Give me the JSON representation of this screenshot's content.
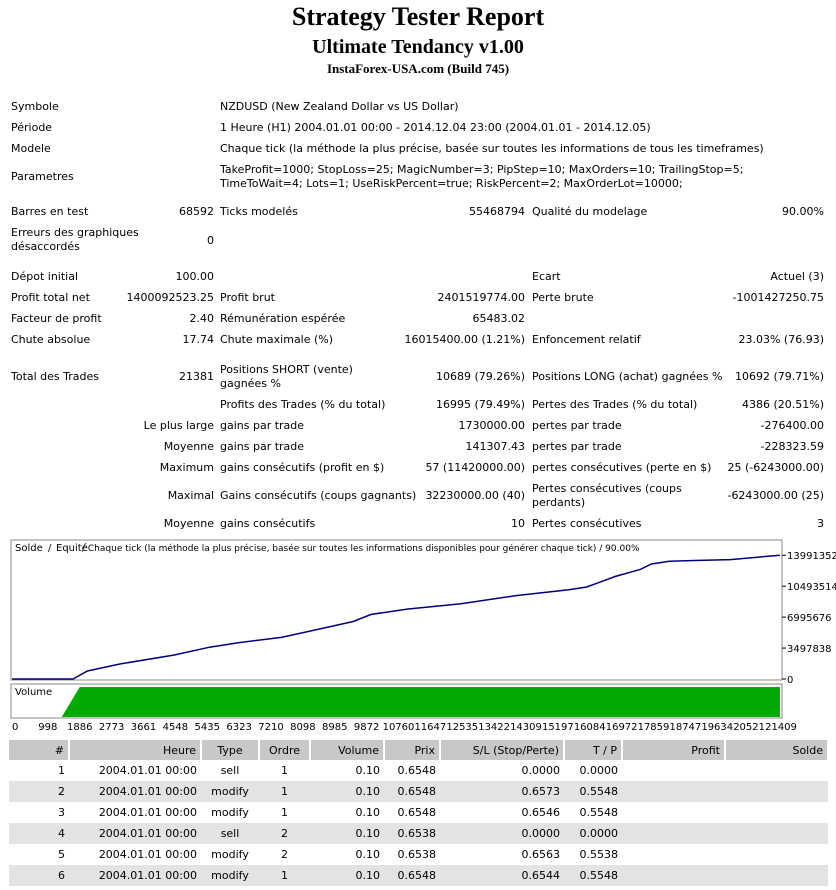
{
  "header": {
    "title": "Strategy Tester Report",
    "subtitle": "Ultimate Tendancy v1.00",
    "broker": "InstaForex-USA.com (Build 745)"
  },
  "info": {
    "symbol_label": "Symbole",
    "symbol_value": "NZDUSD (New Zealand Dollar vs US Dollar)",
    "period_label": "Période",
    "period_value": "1 Heure (H1) 2004.01.01 00:00 - 2014.12.04 23:00 (2004.01.01 - 2014.12.05)",
    "model_label": "Modele",
    "model_value": "Chaque tick (la méthode la plus précise, basée sur toutes les informations de tous les timeframes)",
    "params_label": "Parametres",
    "params_value": "TakeProfit=1000; StopLoss=25; MagicNumber=3; PipStep=10; MaxOrders=10; TrailingStop=5; TimeToWait=4; Lots=1; UseRiskPercent=true; RiskPercent=2; MaxOrderLot=10000;"
  },
  "stats": {
    "bars_label": "Barres en test",
    "bars_value": "68592",
    "ticks_label": "Ticks modelés",
    "ticks_value": "55468794",
    "quality_label": "Qualité du modelage",
    "quality_value": "90.00%",
    "errors_label": "Erreurs des graphiques désaccordés",
    "errors_value": "0",
    "deposit_label": "Dépot initial",
    "deposit_value": "100.00",
    "spread_label": "Ecart",
    "spread_value": "Actuel (3)",
    "net_label": "Profit total net",
    "net_value": "1400092523.25",
    "gross_profit_label": "Profit brut",
    "gross_profit_value": "2401519774.00",
    "gross_loss_label": "Perte brute",
    "gross_loss_value": "-1001427250.75",
    "pf_label": "Facteur de profit",
    "pf_value": "2.40",
    "expected_label": "Rémunération espérée",
    "expected_value": "65483.02",
    "abs_dd_label": "Chute absolue",
    "abs_dd_value": "17.74",
    "max_dd_label": "Chute maximale (%)",
    "max_dd_value": "16015400.00 (1.21%)",
    "rel_dd_label": "Enfoncement relatif",
    "rel_dd_value": "23.03% (76.93)",
    "total_label": "Total des Trades",
    "total_value": "21381",
    "short_label": "Positions SHORT (vente) gagnées %",
    "short_value": "10689 (79.26%)",
    "long_label": "Positions LONG (achat) gagnées %",
    "long_value": "10692 (79.71%)",
    "profit_trades_label": "Profits des Trades (% du total)",
    "profit_trades_value": "16995 (79.49%)",
    "loss_trades_label": "Pertes des Trades (% du total)",
    "loss_trades_value": "4386 (20.51%)",
    "largest_label": "Le plus large",
    "largest_win_label": "gains par trade",
    "largest_win_value": "1730000.00",
    "largest_loss_label": "pertes par trade",
    "largest_loss_value": "-276400.00",
    "avg_label": "Moyenne",
    "avg_win_label": "gains par trade",
    "avg_win_value": "141307.43",
    "avg_loss_label": "pertes par trade",
    "avg_loss_value": "-228323.59",
    "max_label": "Maximum",
    "max_wins_label": "gains consécutifs (profit en $)",
    "max_wins_value": "57 (11420000.00)",
    "max_losses_label": "pertes consécutives (perte en $)",
    "max_losses_value": "25 (-6243000.00)",
    "maximal_label": "Maximal",
    "maximal_wins_label": "Gains consécutifs (coups gagnants)",
    "maximal_wins_value": "32230000.00 (40)",
    "maximal_losses_label": "Pertes consécutives (coups perdants)",
    "maximal_losses_value": "-6243000.00 (25)",
    "avg2_label": "Moyenne",
    "avg_cons_wins_label": "gains consécutifs",
    "avg_cons_wins_value": "10",
    "avg_cons_losses_label": "Pertes consécutives",
    "avg_cons_losses_value": "3"
  },
  "chart_data": {
    "type": "line",
    "legend_solde": "Solde",
    "legend_equity": "Equité",
    "legend_rest": " / Chaque tick (la méthode la plus précise, basée sur toutes les informations disponibles pour générer chaque tick) / 90.00%",
    "y_ticks": [
      "13991352",
      "10493514",
      "6995676",
      "3497838",
      "0"
    ],
    "y_tick_values": [
      13991352,
      10493514,
      6995676,
      3497838,
      0
    ],
    "ylim": [
      0,
      15600000
    ],
    "xlim": [
      0,
      21381
    ],
    "x_ticks": [
      "0",
      "998",
      "1886",
      "2773",
      "3661",
      "4548",
      "5435",
      "6323",
      "7210",
      "8098",
      "8985",
      "9872",
      "10760",
      "11647",
      "12535",
      "13422",
      "14309",
      "15197",
      "16084",
      "16972",
      "17859",
      "18747",
      "19634",
      "20521",
      "21409"
    ],
    "x_tick_values": [
      0,
      998,
      1886,
      2773,
      3661,
      4548,
      5435,
      6323,
      7210,
      8098,
      8985,
      9872,
      10760,
      11647,
      12535,
      13422,
      14309,
      15197,
      16084,
      16972,
      17859,
      18747,
      19634,
      20521,
      21409
    ],
    "series": [
      {
        "name": "Solde",
        "color": "#00007f",
        "x": [
          0,
          1700,
          2100,
          3000,
          4500,
          5500,
          6300,
          7500,
          8500,
          9500,
          10000,
          11000,
          12500,
          14000,
          15500,
          16000,
          16400,
          16800,
          17500,
          17800,
          18300,
          19000,
          20000,
          21381
        ],
        "y": [
          0,
          0,
          900000,
          1700000,
          2700000,
          3600000,
          4100000,
          4700000,
          5600000,
          6500000,
          7300000,
          7900000,
          8500000,
          9400000,
          10100000,
          10400000,
          11000000,
          11600000,
          12400000,
          13000000,
          13300000,
          13400000,
          13500000,
          13991352
        ]
      }
    ],
    "volume_label": "Volume",
    "volume_color": "#00aa00",
    "volume_start_x": 1886
  },
  "trades": {
    "headers": [
      "#",
      "Heure",
      "Type",
      "Ordre",
      "Volume",
      "Prix",
      "S/L (Stop/Perte)",
      "T / P",
      "Profit",
      "Solde"
    ],
    "rows": [
      [
        "1",
        "2004.01.01 00:00",
        "sell",
        "1",
        "0.10",
        "0.6548",
        "0.0000",
        "0.0000",
        "",
        ""
      ],
      [
        "2",
        "2004.01.01 00:00",
        "modify",
        "1",
        "0.10",
        "0.6548",
        "0.6573",
        "0.5548",
        "",
        ""
      ],
      [
        "3",
        "2004.01.01 00:00",
        "modify",
        "1",
        "0.10",
        "0.6548",
        "0.6546",
        "0.5548",
        "",
        ""
      ],
      [
        "4",
        "2004.01.01 00:00",
        "sell",
        "2",
        "0.10",
        "0.6538",
        "0.0000",
        "0.0000",
        "",
        ""
      ],
      [
        "5",
        "2004.01.01 00:00",
        "modify",
        "2",
        "0.10",
        "0.6538",
        "0.6563",
        "0.5538",
        "",
        ""
      ],
      [
        "6",
        "2004.01.01 00:00",
        "modify",
        "1",
        "0.10",
        "0.6548",
        "0.6544",
        "0.5548",
        "",
        ""
      ]
    ]
  }
}
